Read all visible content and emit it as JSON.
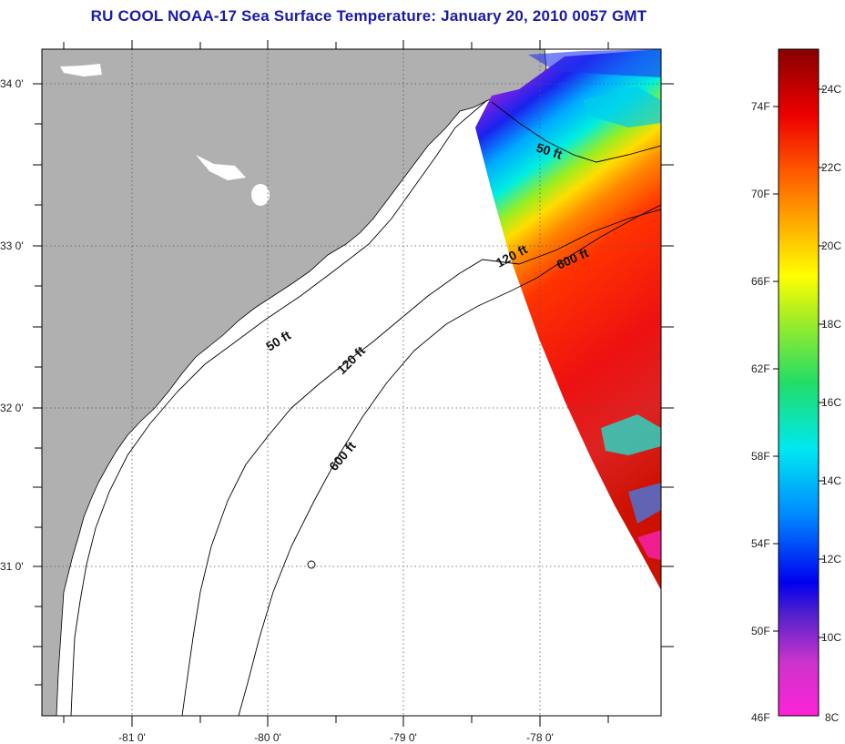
{
  "title": "RU COOL  NOAA-17  Sea Surface Temperature:  January 20, 2010 0057 GMT",
  "map": {
    "lat_labels": [
      "34 0'",
      "33 0'",
      "32 0'",
      "31 0'"
    ],
    "lon_labels": [
      "-81 0'",
      "-80 0'",
      "-79 0'",
      "-78 0'"
    ],
    "contour_labels": {
      "inner_50": "50 ft",
      "inner_120": "120 ft",
      "inner_600": "600 ft",
      "upper_50": "50 ft",
      "upper_120": "120 ft",
      "upper_600": "600 ft"
    },
    "colors": {
      "land": "#b0b0b0",
      "ocean": "#ffffff",
      "grid": "#555555"
    }
  },
  "colorbar": {
    "fahrenheit_labels": [
      "74F",
      "70F",
      "66F",
      "62F",
      "58F",
      "54F",
      "50F",
      "46F"
    ],
    "celsius_labels": [
      "24C",
      "22C",
      "20C",
      "18C",
      "16C",
      "14C",
      "12C",
      "10C",
      "8C"
    ]
  }
}
